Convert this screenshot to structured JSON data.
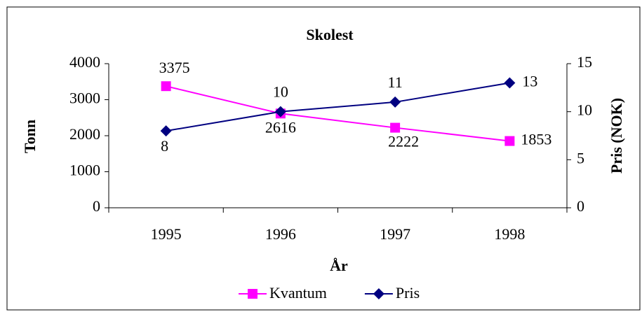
{
  "chart_data": {
    "type": "line",
    "title": "Skolest",
    "x_label": "År",
    "y_label": "Tonn",
    "y2_label": "Pris (NOK)",
    "categories": [
      "1995",
      "1996",
      "1997",
      "1998"
    ],
    "series": [
      {
        "name": "Kvantum",
        "color": "#ff00ff",
        "marker": "square",
        "values": [
          3375,
          2616,
          2222,
          1853
        ]
      },
      {
        "name": "Pris",
        "color": "#000080",
        "marker": "diamond",
        "axis": "y2",
        "values": [
          8,
          10,
          11,
          13
        ]
      }
    ],
    "ylim": [
      0,
      4000
    ],
    "yticks": [
      0,
      1000,
      2000,
      3000,
      4000
    ],
    "y2lim": [
      0,
      15
    ],
    "y2ticks": [
      0,
      5,
      10,
      15
    ],
    "grid": false,
    "legend": "bottom"
  }
}
